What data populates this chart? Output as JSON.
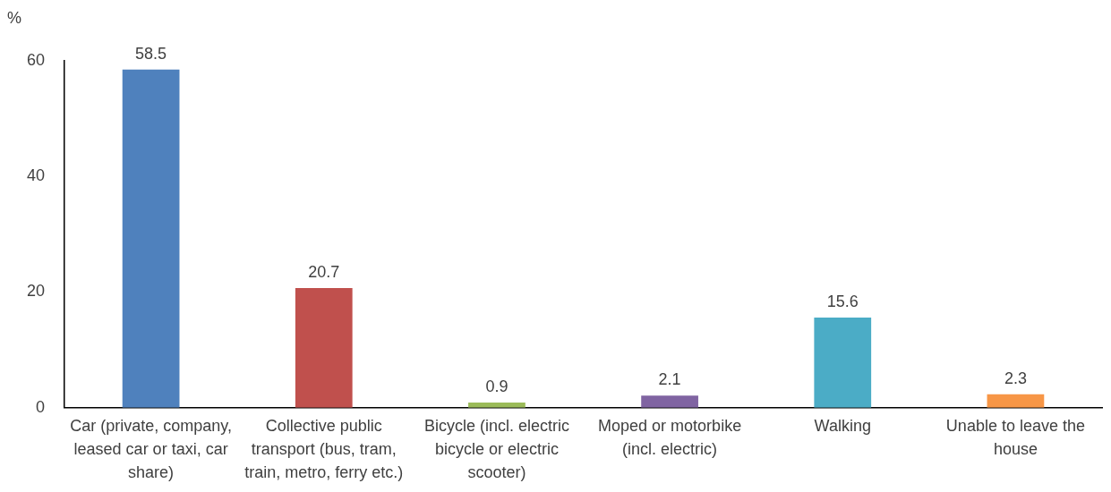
{
  "chart_data": {
    "type": "bar",
    "ylabel": "%",
    "categories": [
      "Car (private, company, leased car or taxi, car share)",
      "Collective public transport (bus, tram, train, metro, ferry etc.)",
      "Bicycle (incl. electric bicycle or electric scooter)",
      "Moped or motorbike (incl. electric)",
      "Walking",
      "Unable to leave the house"
    ],
    "values": [
      58.5,
      20.7,
      0.9,
      2.1,
      15.6,
      2.3
    ],
    "colors": [
      "#4f81bd",
      "#c0504d",
      "#9bbb59",
      "#8064a2",
      "#4bacc6",
      "#f79646"
    ],
    "ylim": [
      0,
      60
    ],
    "yticks": [
      0,
      20,
      40,
      60
    ],
    "grid": false,
    "legend": false,
    "data_labels": true
  }
}
